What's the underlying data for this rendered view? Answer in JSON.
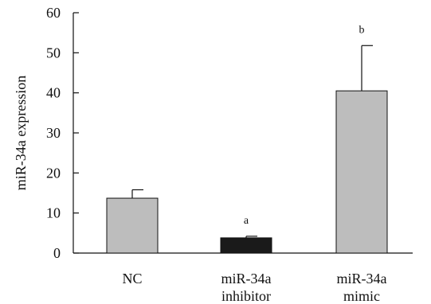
{
  "chart_data": {
    "type": "bar",
    "title": "",
    "xlabel": "",
    "ylabel": "miR-34a expression",
    "ylim": [
      0,
      60
    ],
    "yticks": [
      "0",
      "10",
      "20",
      "30",
      "40",
      "50",
      "60"
    ],
    "grid": false,
    "categories": [
      {
        "lines": [
          "NC"
        ]
      },
      {
        "lines": [
          "miR-34a",
          "inhibitor"
        ]
      },
      {
        "lines": [
          "miR-34a",
          "mimic"
        ]
      }
    ],
    "values": [
      13.7,
      3.8,
      40.5
    ],
    "errors": [
      2.1,
      0.4,
      11.3
    ],
    "annotations": [
      "",
      "a",
      "b"
    ],
    "colors": [
      "#bdbdbd",
      "#1a1a1a",
      "#bdbdbd"
    ]
  }
}
